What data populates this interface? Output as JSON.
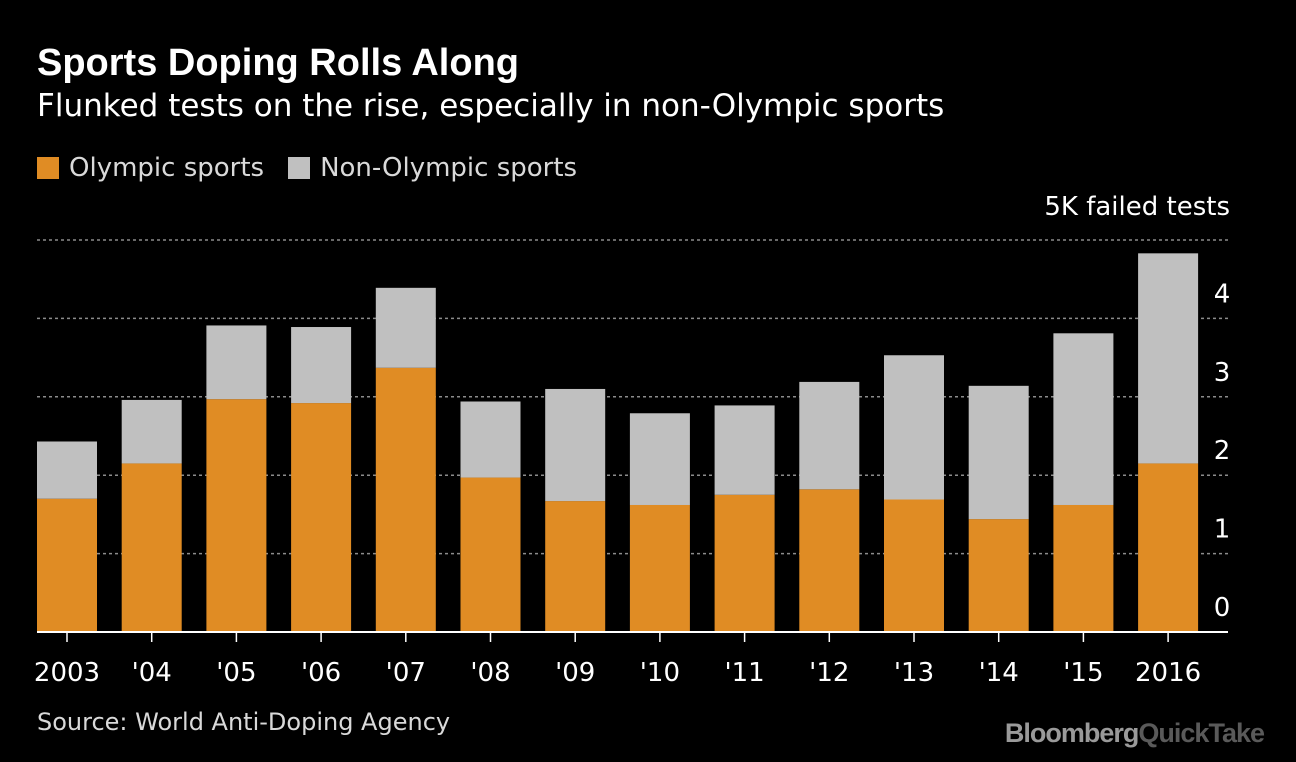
{
  "header": {
    "title": "Sports Doping Rolls Along",
    "subtitle": "Flunked tests on the rise, especially in non-Olympic sports"
  },
  "legend": [
    {
      "label": "Olympic sports",
      "color": "#e08c24"
    },
    {
      "label": "Non-Olympic sports",
      "color": "#c0c0c0"
    }
  ],
  "unit_label": "5K failed tests",
  "chart_data": {
    "type": "bar",
    "stacked": true,
    "title": "Sports Doping Rolls Along",
    "subtitle": "Flunked tests on the rise, especially in non-Olympic sports",
    "categories": [
      "2003",
      "'04",
      "'05",
      "'06",
      "'07",
      "'08",
      "'09",
      "'10",
      "'11",
      "'12",
      "'13",
      "'14",
      "'15",
      "2016"
    ],
    "series": [
      {
        "name": "Olympic sports",
        "color": "#e08c24",
        "values": [
          1.7,
          2.15,
          2.97,
          2.92,
          3.37,
          1.97,
          1.67,
          1.62,
          1.75,
          1.82,
          1.69,
          1.44,
          1.62,
          2.15
        ]
      },
      {
        "name": "Non-Olympic sports",
        "color": "#c0c0c0",
        "values": [
          0.73,
          0.81,
          0.94,
          0.97,
          1.02,
          0.97,
          1.43,
          1.17,
          1.14,
          1.37,
          1.84,
          1.7,
          2.19,
          2.68
        ]
      }
    ],
    "y_ticks": [
      "0",
      "1",
      "2",
      "3",
      "4"
    ],
    "ylim": [
      0,
      5
    ],
    "ylabel": "5K failed tests",
    "xlabel": "",
    "grid": true,
    "y_axis_side": "right"
  },
  "footer": {
    "source": "Source: World Anti-Doping Agency",
    "logo_bloomberg": "Bloomberg",
    "logo_quicktake": "QuickTake"
  }
}
